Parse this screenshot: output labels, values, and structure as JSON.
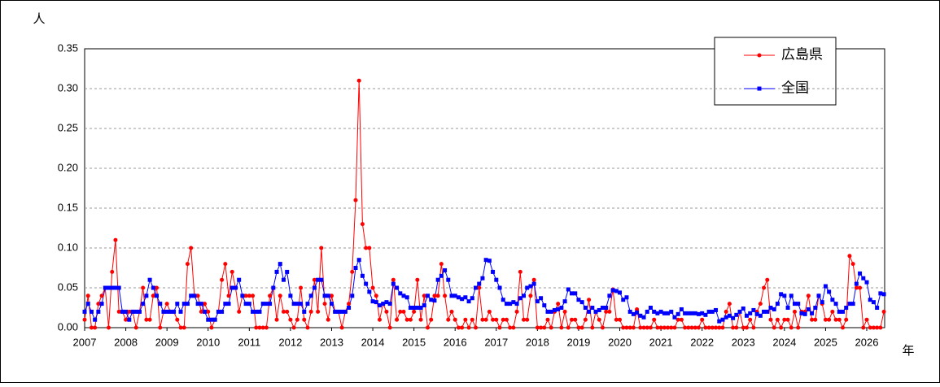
{
  "chart_data": {
    "type": "line",
    "y_label": "人",
    "x_label": "年",
    "categories": [
      "2007",
      null,
      null,
      null,
      null,
      null,
      null,
      null,
      null,
      null,
      null,
      null,
      "2008",
      null,
      null,
      null,
      null,
      null,
      null,
      null,
      null,
      null,
      null,
      null,
      "2009",
      null,
      null,
      null,
      null,
      null,
      null,
      null,
      null,
      null,
      null,
      null,
      "2010",
      null,
      null,
      null,
      null,
      null,
      null,
      null,
      null,
      null,
      null,
      null,
      "2011",
      null,
      null,
      null,
      null,
      null,
      null,
      null,
      null,
      null,
      null,
      null,
      "2012",
      null,
      null,
      null,
      null,
      null,
      null,
      null,
      null,
      null,
      null,
      null,
      "2013",
      null,
      null,
      null,
      null,
      null,
      null,
      null,
      null,
      null,
      null,
      null,
      "2014",
      null,
      null,
      null,
      null,
      null,
      null,
      null,
      null,
      null,
      null,
      null,
      "2015",
      null,
      null,
      null,
      null,
      null,
      null,
      null,
      null,
      null,
      null,
      null,
      "2016",
      null,
      null,
      null,
      null,
      null,
      null,
      null,
      null,
      null,
      null,
      null,
      "2017",
      null,
      null,
      null,
      null,
      null,
      null,
      null,
      null,
      null,
      null,
      null,
      "2018",
      null,
      null,
      null,
      null,
      null,
      null,
      null,
      null,
      null,
      null,
      null,
      "2019",
      null,
      null,
      null,
      null,
      null,
      null,
      null,
      null,
      null,
      null,
      null,
      "2020",
      null,
      null,
      null,
      null,
      null,
      null,
      null,
      null,
      null,
      null,
      null,
      "2021",
      null,
      null,
      null,
      null,
      null,
      null,
      null,
      null,
      null,
      null,
      null,
      "2022",
      null,
      null,
      null,
      null,
      null,
      null,
      null,
      null,
      null,
      null,
      null,
      "2023",
      null,
      null,
      null,
      null,
      null,
      null,
      null,
      null,
      null,
      null,
      null,
      "2024",
      null,
      null,
      null,
      null,
      null,
      null,
      null,
      null,
      null,
      null,
      null,
      "2025",
      null,
      null,
      null,
      null,
      null,
      null,
      null,
      null,
      null,
      null,
      null,
      "2026",
      null,
      null,
      null,
      null,
      null
    ],
    "series": [
      {
        "name": "広島県",
        "color": "#ff0000",
        "marker": "circle",
        "values": [
          0.01,
          0.04,
          0,
          0,
          0.03,
          0.04,
          0.05,
          0,
          0.07,
          0.11,
          0.02,
          0.02,
          0.01,
          0.02,
          0.02,
          0,
          0.02,
          0.05,
          0.01,
          0.01,
          0.04,
          0.05,
          0,
          0.02,
          0.03,
          0.02,
          0.02,
          0.01,
          0,
          0,
          0.08,
          0.1,
          0.04,
          0.04,
          0.02,
          0.03,
          0.02,
          0,
          0.01,
          0.02,
          0.06,
          0.08,
          0.04,
          0.07,
          0.05,
          0.02,
          0.04,
          0.04,
          0.04,
          0.04,
          0,
          0,
          0,
          0,
          0.04,
          0.05,
          0.01,
          0.04,
          0.02,
          0.02,
          0.01,
          0,
          0.01,
          0.05,
          0.01,
          0,
          0.02,
          0.06,
          0.02,
          0.1,
          0.03,
          0.01,
          0.04,
          0.02,
          0.02,
          0,
          0.02,
          0.03,
          0.07,
          0.16,
          0.31,
          0.13,
          0.1,
          0.1,
          0.05,
          0.04,
          0.01,
          0.03,
          0.02,
          0,
          0.06,
          0.01,
          0.02,
          0.02,
          0.01,
          0.01,
          0.02,
          0.06,
          0.01,
          0.04,
          0,
          0.01,
          0.04,
          0.04,
          0.08,
          0.04,
          0.01,
          0.02,
          0.01,
          0,
          0,
          0.01,
          0,
          0.01,
          0,
          0.05,
          0.01,
          0.01,
          0.02,
          0.01,
          0.01,
          0,
          0.01,
          0.01,
          0,
          0,
          0.02,
          0.07,
          0.01,
          0.01,
          0.04,
          0.06,
          0,
          0,
          0,
          0.01,
          0,
          0.02,
          0.03,
          0,
          0.02,
          0,
          0.01,
          0.01,
          0,
          0,
          0.01,
          0.035,
          0,
          0.02,
          0.01,
          0,
          0.02,
          0.02,
          0.048,
          0.01,
          0.01,
          0,
          0,
          0,
          0,
          0.023,
          0,
          0,
          0,
          0,
          0.01,
          0,
          0,
          0,
          0,
          0,
          0,
          0.01,
          0.01,
          0,
          0,
          0,
          0,
          0,
          0.01,
          0,
          0,
          0,
          0,
          0,
          0,
          0.02,
          0.03,
          0,
          0,
          0.02,
          0,
          0,
          0.01,
          0,
          0.02,
          0.03,
          0.05,
          0.06,
          0.01,
          0,
          0.01,
          0,
          0.01,
          0.01,
          0,
          0.02,
          0,
          0.02,
          0.02,
          0.04,
          0.01,
          0.01,
          0.04,
          0.03,
          0.01,
          0.01,
          0.02,
          0.01,
          0.01,
          0,
          0.01,
          0.09,
          0.08,
          0.05,
          0.05,
          0,
          0.01,
          0,
          0,
          0,
          0,
          0.02
        ]
      },
      {
        "name": "全国",
        "color": "#0000ff",
        "marker": "square",
        "values": [
          0.02,
          0.03,
          0.02,
          0.01,
          0.02,
          0.03,
          0.05,
          0.05,
          0.05,
          0.05,
          0.05,
          0.02,
          0.02,
          0.01,
          0.02,
          0.02,
          0.02,
          0.03,
          0.04,
          0.06,
          0.05,
          0.04,
          0.03,
          0.02,
          0.02,
          0.02,
          0.02,
          0.03,
          0.02,
          0.03,
          0.03,
          0.04,
          0.04,
          0.03,
          0.03,
          0.02,
          0.01,
          0.01,
          0.01,
          0.02,
          0.02,
          0.03,
          0.03,
          0.05,
          0.05,
          0.06,
          0.04,
          0.03,
          0.03,
          0.02,
          0.02,
          0.02,
          0.03,
          0.03,
          0.03,
          0.05,
          0.07,
          0.08,
          0.06,
          0.07,
          0.04,
          0.03,
          0.03,
          0.03,
          0.02,
          0.03,
          0.04,
          0.05,
          0.06,
          0.06,
          0.04,
          0.04,
          0.03,
          0.02,
          0.02,
          0.02,
          0.02,
          0.025,
          0.04,
          0.075,
          0.085,
          0.065,
          0.055,
          0.045,
          0.033,
          0.032,
          0.028,
          0.03,
          0.032,
          0.03,
          0.055,
          0.05,
          0.043,
          0.04,
          0.038,
          0.025,
          0.025,
          0.025,
          0.025,
          0.028,
          0.04,
          0.035,
          0.034,
          0.06,
          0.065,
          0.072,
          0.06,
          0.04,
          0.04,
          0.038,
          0.036,
          0.038,
          0.033,
          0.037,
          0.05,
          0.055,
          0.062,
          0.085,
          0.084,
          0.07,
          0.06,
          0.05,
          0.035,
          0.03,
          0.03,
          0.032,
          0.03,
          0.037,
          0.04,
          0.05,
          0.052,
          0.055,
          0.033,
          0.037,
          0.028,
          0.02,
          0.02,
          0.022,
          0.023,
          0.025,
          0.033,
          0.048,
          0.043,
          0.043,
          0.035,
          0.032,
          0.025,
          0.02,
          0.025,
          0.02,
          0.022,
          0.025,
          0.025,
          0.04,
          0.047,
          0.046,
          0.044,
          0.035,
          0.038,
          0.02,
          0.017,
          0.019,
          0.015,
          0.013,
          0.02,
          0.025,
          0.02,
          0.018,
          0.02,
          0.018,
          0.018,
          0.02,
          0.013,
          0.017,
          0.023,
          0.018,
          0.018,
          0.018,
          0.018,
          0.017,
          0.018,
          0.016,
          0.02,
          0.02,
          0.022,
          0.008,
          0.01,
          0.013,
          0.015,
          0.012,
          0.016,
          0.02,
          0.024,
          0.015,
          0.018,
          0.022,
          0.017,
          0.015,
          0.02,
          0.02,
          0.025,
          0.023,
          0.03,
          0.042,
          0.04,
          0.025,
          0.04,
          0.03,
          0.03,
          0.018,
          0.017,
          0.023,
          0.018,
          0.025,
          0.04,
          0.032,
          0.052,
          0.045,
          0.035,
          0.03,
          0.02,
          0.02,
          0.025,
          0.03,
          0.03,
          0.055,
          0.068,
          0.062,
          0.057,
          0.035,
          0.032,
          0.025,
          0.043,
          0.042
        ]
      }
    ],
    "ylim": [
      0,
      0.35
    ],
    "yticks": [
      {
        "value": 0,
        "label": "0.00"
      },
      0.05,
      {
        "value": 0.1,
        "label": "0.10"
      },
      0.15,
      {
        "value": 0.2,
        "label": "0.20"
      },
      0.25,
      {
        "value": 0.3,
        "label": "0.30"
      },
      0.35
    ],
    "grid": true,
    "legend": "upper right"
  }
}
